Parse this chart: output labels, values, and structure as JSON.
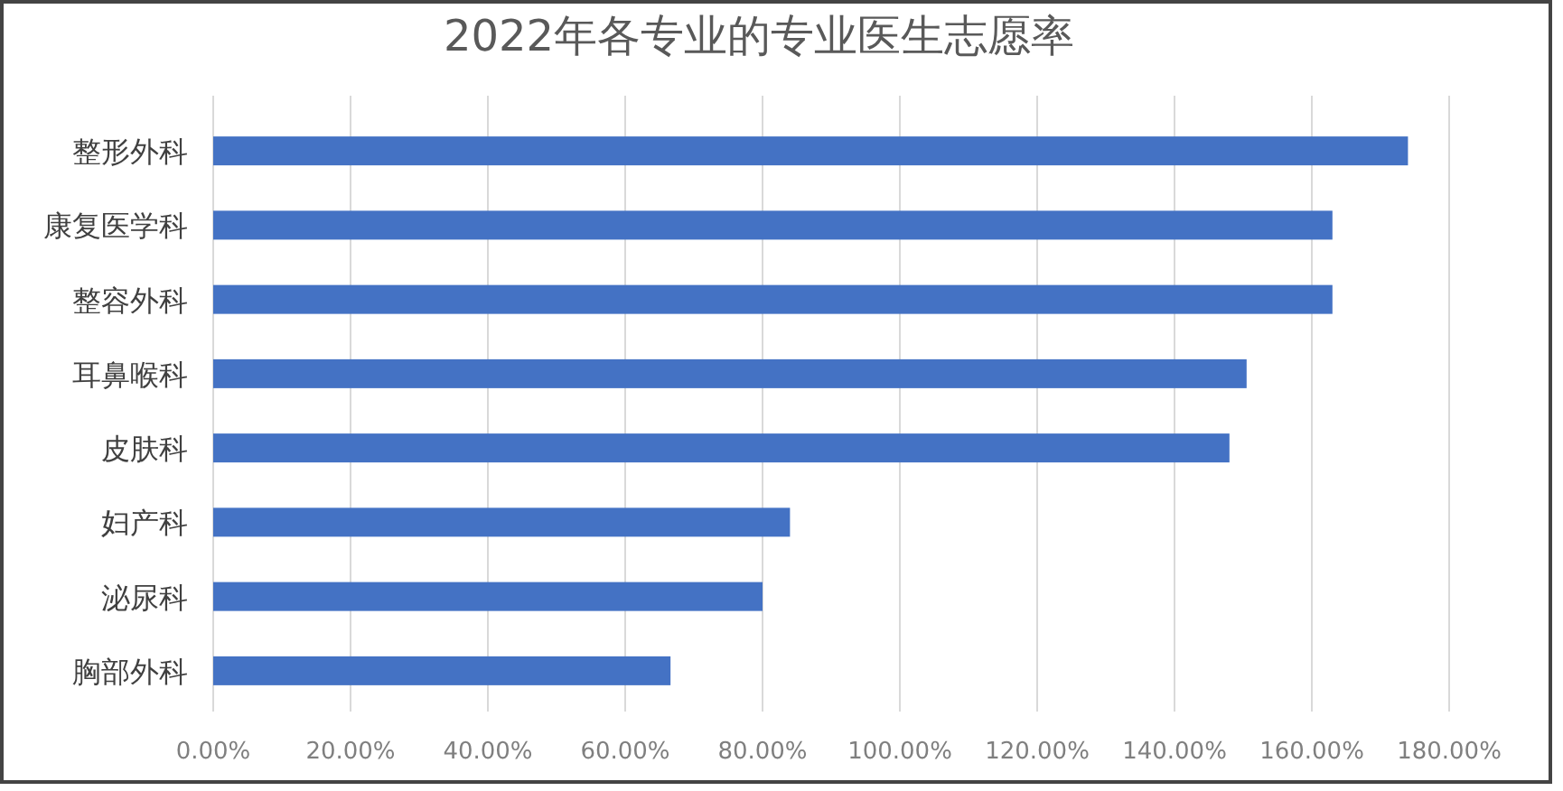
{
  "chart_data": {
    "type": "bar",
    "orientation": "horizontal",
    "title": "2022年各专业的专业医生志愿率",
    "categories": [
      "整形外科",
      "康复医学科",
      "整容外科",
      "耳鼻喉科",
      "皮肤科",
      "妇产科",
      "泌尿科",
      "胸部外科"
    ],
    "values": [
      174,
      163,
      163,
      150.5,
      148,
      84,
      80,
      66.6
    ],
    "color": "#4472c4",
    "xlim": [
      0,
      180
    ],
    "xticks": [
      {
        "value": 0,
        "label": "0.00%"
      },
      {
        "value": 20,
        "label": "20.00%"
      },
      {
        "value": 40,
        "label": "40.00%"
      },
      {
        "value": 60,
        "label": "60.00%"
      },
      {
        "value": 80,
        "label": "80.00%"
      },
      {
        "value": 100,
        "label": "100.00%"
      },
      {
        "value": 120,
        "label": "120.00%"
      },
      {
        "value": 140,
        "label": "140.00%"
      },
      {
        "value": 160,
        "label": "160.00%"
      },
      {
        "value": 180,
        "label": "180.00%"
      }
    ],
    "grid": "x"
  }
}
